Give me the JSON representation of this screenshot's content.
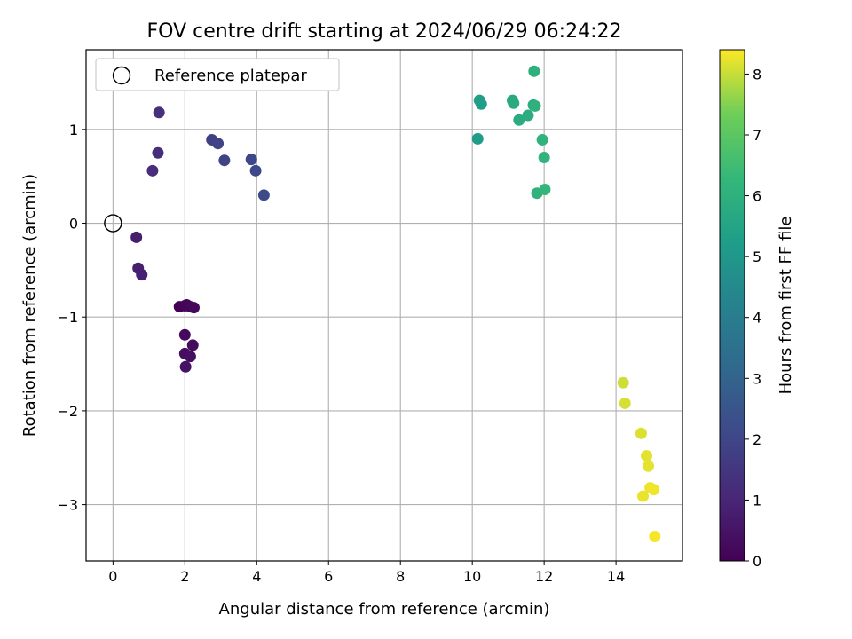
{
  "chart_data": {
    "type": "scatter",
    "title": "FOV centre drift starting at 2024/06/29 06:24:22",
    "xlabel": "Angular distance from reference (arcmin)",
    "ylabel": "Rotation from reference (arcmin)",
    "xlim": [
      -0.75,
      15.85
    ],
    "ylim": [
      -3.6,
      1.85
    ],
    "xticks": [
      0,
      2,
      4,
      6,
      8,
      10,
      12,
      14
    ],
    "yticks": [
      -3,
      -2,
      -1,
      0,
      1
    ],
    "grid": true,
    "legend": {
      "placement": "upper left",
      "entries": [
        "Reference platepar"
      ]
    },
    "reference": {
      "name": "Reference platepar",
      "x": 0,
      "y": 0,
      "marker": "open-circle"
    },
    "colorbar": {
      "label": "Hours from first FF file",
      "range": [
        0,
        8.4
      ],
      "ticks": [
        0,
        1,
        2,
        3,
        4,
        5,
        6,
        7,
        8
      ],
      "colormap": "viridis"
    },
    "points": [
      {
        "x": 1.85,
        "y": -0.89,
        "hours": 0.0
      },
      {
        "x": 2.0,
        "y": -0.88,
        "hours": 0.05
      },
      {
        "x": 2.05,
        "y": -0.87,
        "hours": 0.1
      },
      {
        "x": 2.15,
        "y": -0.89,
        "hours": 0.15
      },
      {
        "x": 2.25,
        "y": -0.9,
        "hours": 0.2
      },
      {
        "x": 2.0,
        "y": -1.19,
        "hours": 0.25
      },
      {
        "x": 2.22,
        "y": -1.3,
        "hours": 0.3
      },
      {
        "x": 2.0,
        "y": -1.39,
        "hours": 0.35
      },
      {
        "x": 2.15,
        "y": -1.42,
        "hours": 0.4
      },
      {
        "x": 2.02,
        "y": -1.53,
        "hours": 0.45
      },
      {
        "x": 0.65,
        "y": -0.15,
        "hours": 0.75
      },
      {
        "x": 0.7,
        "y": -0.48,
        "hours": 0.8
      },
      {
        "x": 0.8,
        "y": -0.55,
        "hours": 0.85
      },
      {
        "x": 1.1,
        "y": 0.56,
        "hours": 1.2
      },
      {
        "x": 1.25,
        "y": 0.75,
        "hours": 1.25
      },
      {
        "x": 1.28,
        "y": 1.18,
        "hours": 1.3
      },
      {
        "x": 2.75,
        "y": 0.89,
        "hours": 1.85
      },
      {
        "x": 2.92,
        "y": 0.85,
        "hours": 1.9
      },
      {
        "x": 3.1,
        "y": 0.67,
        "hours": 1.95
      },
      {
        "x": 3.85,
        "y": 0.68,
        "hours": 2.05
      },
      {
        "x": 3.97,
        "y": 0.56,
        "hours": 2.1
      },
      {
        "x": 4.2,
        "y": 0.3,
        "hours": 2.15
      },
      {
        "x": 10.15,
        "y": 0.9,
        "hours": 5.2
      },
      {
        "x": 10.2,
        "y": 1.31,
        "hours": 5.25
      },
      {
        "x": 10.25,
        "y": 1.27,
        "hours": 5.3
      },
      {
        "x": 11.12,
        "y": 1.31,
        "hours": 5.7
      },
      {
        "x": 11.15,
        "y": 1.28,
        "hours": 5.75
      },
      {
        "x": 11.3,
        "y": 1.1,
        "hours": 5.8
      },
      {
        "x": 11.55,
        "y": 1.15,
        "hours": 5.85
      },
      {
        "x": 11.7,
        "y": 1.26,
        "hours": 5.9
      },
      {
        "x": 11.72,
        "y": 1.62,
        "hours": 5.95
      },
      {
        "x": 11.75,
        "y": 1.25,
        "hours": 6.0
      },
      {
        "x": 11.8,
        "y": 0.32,
        "hours": 6.05
      },
      {
        "x": 11.95,
        "y": 0.89,
        "hours": 6.1
      },
      {
        "x": 12.0,
        "y": 0.7,
        "hours": 6.15
      },
      {
        "x": 12.02,
        "y": 0.36,
        "hours": 6.2
      },
      {
        "x": 14.2,
        "y": -1.7,
        "hours": 8.05
      },
      {
        "x": 14.25,
        "y": -1.92,
        "hours": 8.1
      },
      {
        "x": 14.7,
        "y": -2.24,
        "hours": 8.15
      },
      {
        "x": 14.85,
        "y": -2.48,
        "hours": 8.2
      },
      {
        "x": 14.9,
        "y": -2.59,
        "hours": 8.22
      },
      {
        "x": 14.75,
        "y": -2.91,
        "hours": 8.25
      },
      {
        "x": 14.95,
        "y": -2.82,
        "hours": 8.28
      },
      {
        "x": 15.05,
        "y": -2.84,
        "hours": 8.3
      },
      {
        "x": 15.08,
        "y": -3.34,
        "hours": 8.35
      }
    ]
  }
}
